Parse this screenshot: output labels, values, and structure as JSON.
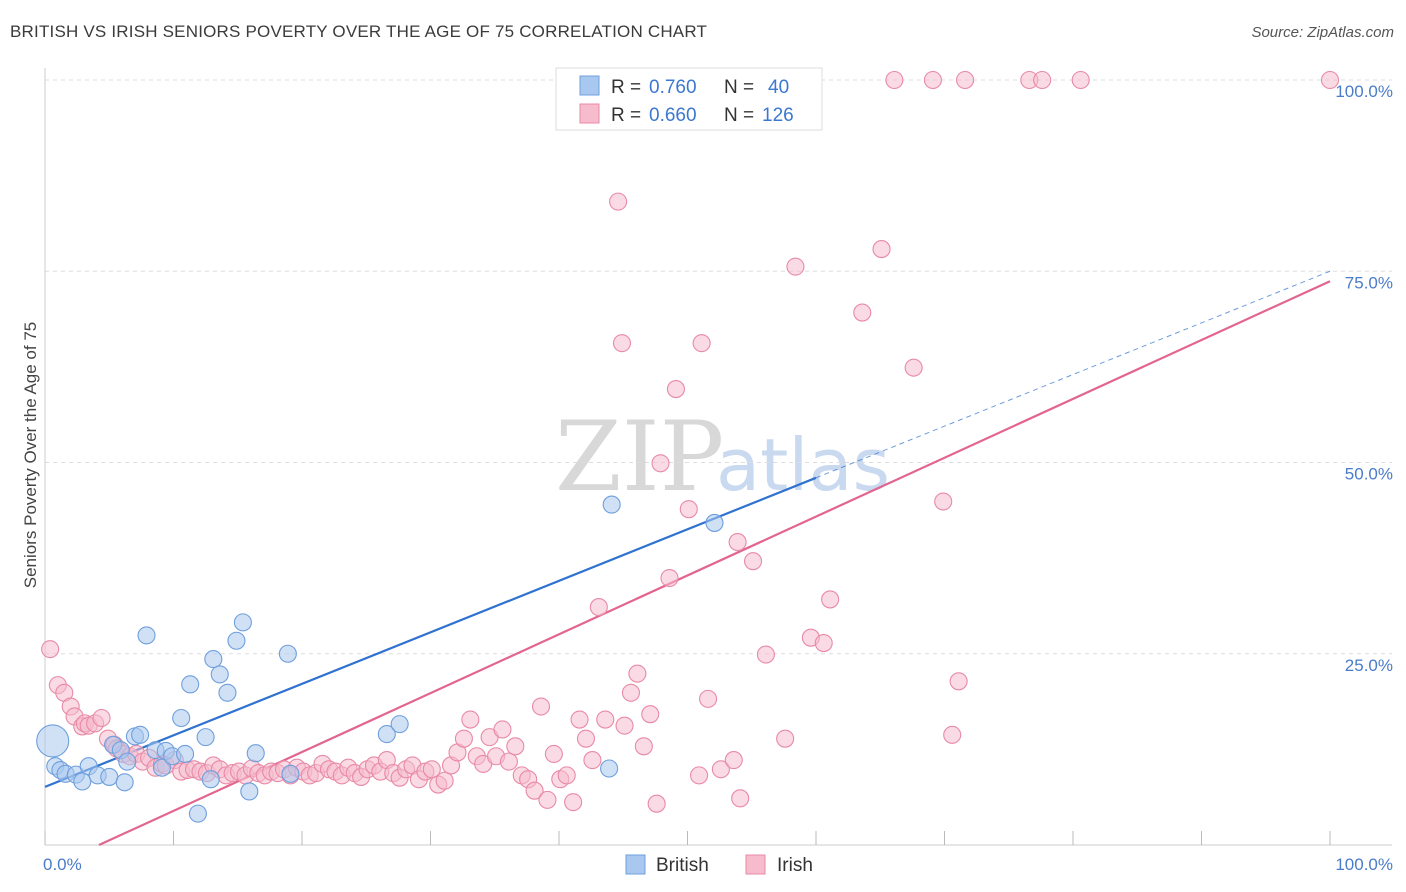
{
  "title": "BRITISH VS IRISH SENIORS POVERTY OVER THE AGE OF 75 CORRELATION CHART",
  "source": "Source: ZipAtlas.com",
  "watermark": {
    "zip": "ZIP",
    "atlas": "atlas"
  },
  "legend": {
    "r_label": "R =",
    "n_label": "N =",
    "rows": [
      {
        "r": "0.760",
        "n": "40"
      },
      {
        "r": "0.660",
        "n": "126"
      }
    ]
  },
  "colors": {
    "british_fill": "#a9c8ef",
    "british_stroke": "#6e9fdd",
    "british_line": "#2f72cf",
    "irish_fill": "#f6bccd",
    "irish_stroke": "#e88aa6",
    "irish_line": "#e3648f",
    "grid": "#dddddd",
    "axis_tick": "#4a7cc9"
  },
  "chart_data": {
    "type": "scatter",
    "title": "BRITISH VS IRISH SENIORS POVERTY OVER THE AGE OF 75 CORRELATION CHART",
    "xlabel": "",
    "ylabel": "Seniors Poverty Over the Age of 75",
    "xlim": [
      0,
      100
    ],
    "ylim": [
      0,
      100
    ],
    "x_tick_labels": [
      "0.0%",
      "100.0%"
    ],
    "y_tick_labels": [
      "25.0%",
      "50.0%",
      "75.0%",
      "100.0%"
    ],
    "y_ticks": [
      25,
      50,
      75,
      100
    ],
    "grid": true,
    "legend_position": "top-center",
    "series": [
      {
        "name": "British",
        "R": 0.76,
        "N": 40,
        "trend": {
          "x0": 0,
          "y0": 7.6,
          "x1": 60,
          "y1": 48.0,
          "dash_to_x": 100,
          "dash_to_y": 75.0
        },
        "points": [
          [
            0.6,
            13.6
          ],
          [
            0.8,
            10.3
          ],
          [
            1.2,
            9.8
          ],
          [
            1.6,
            9.3
          ],
          [
            2.4,
            9.2
          ],
          [
            2.9,
            8.3
          ],
          [
            3.4,
            10.3
          ],
          [
            4.1,
            9.1
          ],
          [
            5.0,
            8.9
          ],
          [
            5.3,
            13.1
          ],
          [
            5.9,
            12.4
          ],
          [
            6.2,
            8.2
          ],
          [
            6.4,
            10.9
          ],
          [
            7.0,
            14.2
          ],
          [
            7.4,
            14.4
          ],
          [
            7.9,
            27.4
          ],
          [
            8.6,
            12.4
          ],
          [
            9.1,
            10.1
          ],
          [
            9.4,
            12.3
          ],
          [
            9.9,
            11.6
          ],
          [
            10.6,
            16.6
          ],
          [
            10.9,
            11.9
          ],
          [
            11.3,
            21.0
          ],
          [
            11.9,
            4.1
          ],
          [
            12.5,
            14.1
          ],
          [
            12.9,
            8.6
          ],
          [
            13.1,
            24.3
          ],
          [
            13.6,
            22.3
          ],
          [
            14.2,
            19.9
          ],
          [
            14.9,
            26.7
          ],
          [
            15.4,
            29.1
          ],
          [
            15.9,
            7.0
          ],
          [
            16.4,
            12.0
          ],
          [
            18.9,
            25.0
          ],
          [
            19.1,
            9.3
          ],
          [
            26.6,
            14.5
          ],
          [
            27.6,
            15.8
          ],
          [
            44.1,
            44.5
          ],
          [
            43.9,
            10.0
          ],
          [
            52.1,
            42.1
          ]
        ]
      },
      {
        "name": "Irish",
        "R": 0.66,
        "N": 126,
        "trend": {
          "x0": 4.2,
          "y0": 0,
          "x1": 100,
          "y1": 73.7
        },
        "points": [
          [
            0.4,
            25.6
          ],
          [
            1.0,
            20.9
          ],
          [
            1.5,
            19.9
          ],
          [
            2.0,
            18.1
          ],
          [
            2.3,
            16.8
          ],
          [
            2.9,
            15.5
          ],
          [
            3.1,
            15.9
          ],
          [
            3.4,
            15.6
          ],
          [
            3.9,
            15.9
          ],
          [
            4.4,
            16.6
          ],
          [
            4.9,
            13.9
          ],
          [
            5.4,
            13.1
          ],
          [
            5.6,
            12.6
          ],
          [
            6.1,
            11.9
          ],
          [
            6.6,
            11.6
          ],
          [
            7.1,
            11.9
          ],
          [
            7.6,
            10.9
          ],
          [
            8.1,
            11.4
          ],
          [
            8.6,
            10.1
          ],
          [
            9.1,
            10.6
          ],
          [
            9.4,
            10.4
          ],
          [
            10.1,
            11.1
          ],
          [
            10.6,
            9.6
          ],
          [
            11.1,
            9.8
          ],
          [
            11.6,
            9.9
          ],
          [
            12.1,
            9.6
          ],
          [
            12.6,
            9.4
          ],
          [
            13.1,
            10.4
          ],
          [
            13.6,
            9.9
          ],
          [
            14.1,
            9.1
          ],
          [
            14.6,
            9.4
          ],
          [
            15.1,
            9.6
          ],
          [
            15.6,
            9.1
          ],
          [
            16.1,
            10.0
          ],
          [
            16.6,
            9.4
          ],
          [
            17.1,
            9.1
          ],
          [
            17.6,
            9.6
          ],
          [
            18.1,
            9.4
          ],
          [
            18.6,
            9.9
          ],
          [
            19.1,
            9.1
          ],
          [
            19.6,
            10.1
          ],
          [
            20.1,
            9.6
          ],
          [
            20.6,
            9.1
          ],
          [
            21.1,
            9.4
          ],
          [
            21.6,
            10.6
          ],
          [
            22.1,
            9.9
          ],
          [
            22.6,
            9.6
          ],
          [
            23.1,
            9.1
          ],
          [
            23.6,
            10.1
          ],
          [
            24.1,
            9.4
          ],
          [
            24.6,
            8.9
          ],
          [
            25.1,
            9.9
          ],
          [
            25.6,
            10.4
          ],
          [
            26.1,
            9.6
          ],
          [
            26.6,
            11.1
          ],
          [
            27.1,
            9.4
          ],
          [
            27.6,
            8.8
          ],
          [
            28.1,
            9.9
          ],
          [
            28.6,
            10.4
          ],
          [
            29.1,
            8.6
          ],
          [
            29.6,
            9.6
          ],
          [
            30.1,
            9.9
          ],
          [
            30.6,
            7.9
          ],
          [
            31.1,
            8.4
          ],
          [
            31.6,
            10.4
          ],
          [
            32.1,
            12.1
          ],
          [
            32.6,
            13.9
          ],
          [
            33.1,
            16.4
          ],
          [
            33.6,
            11.6
          ],
          [
            34.1,
            10.6
          ],
          [
            34.6,
            14.1
          ],
          [
            35.1,
            11.6
          ],
          [
            35.6,
            15.1
          ],
          [
            36.1,
            10.9
          ],
          [
            36.6,
            12.9
          ],
          [
            37.1,
            9.1
          ],
          [
            37.6,
            8.6
          ],
          [
            38.1,
            7.1
          ],
          [
            38.6,
            18.1
          ],
          [
            39.1,
            5.9
          ],
          [
            39.6,
            11.9
          ],
          [
            40.1,
            8.6
          ],
          [
            40.6,
            9.1
          ],
          [
            41.1,
            5.6
          ],
          [
            41.6,
            16.4
          ],
          [
            42.1,
            13.9
          ],
          [
            42.6,
            11.1
          ],
          [
            43.1,
            31.1
          ],
          [
            43.6,
            16.4
          ],
          [
            44.6,
            84.1
          ],
          [
            44.9,
            65.6
          ],
          [
            45.1,
            15.6
          ],
          [
            45.6,
            19.9
          ],
          [
            46.1,
            22.4
          ],
          [
            46.6,
            12.9
          ],
          [
            47.1,
            17.1
          ],
          [
            47.6,
            5.4
          ],
          [
            47.9,
            49.9
          ],
          [
            48.6,
            34.9
          ],
          [
            49.1,
            59.6
          ],
          [
            50.1,
            43.9
          ],
          [
            50.9,
            9.1
          ],
          [
            51.1,
            65.6
          ],
          [
            51.6,
            19.1
          ],
          [
            52.6,
            9.9
          ],
          [
            53.6,
            11.1
          ],
          [
            53.9,
            39.6
          ],
          [
            54.1,
            6.1
          ],
          [
            55.1,
            37.1
          ],
          [
            56.1,
            24.9
          ],
          [
            57.6,
            13.9
          ],
          [
            58.4,
            75.6
          ],
          [
            59.6,
            27.1
          ],
          [
            60.6,
            26.4
          ],
          [
            61.1,
            32.1
          ],
          [
            63.6,
            69.6
          ],
          [
            65.1,
            77.9
          ],
          [
            67.6,
            62.4
          ],
          [
            69.9,
            44.9
          ],
          [
            70.6,
            14.4
          ],
          [
            71.1,
            21.4
          ],
          [
            66.1,
            100
          ],
          [
            69.1,
            100
          ],
          [
            71.6,
            100
          ],
          [
            76.6,
            100
          ],
          [
            77.6,
            100
          ],
          [
            80.6,
            100
          ],
          [
            100,
            100
          ]
        ]
      }
    ]
  }
}
